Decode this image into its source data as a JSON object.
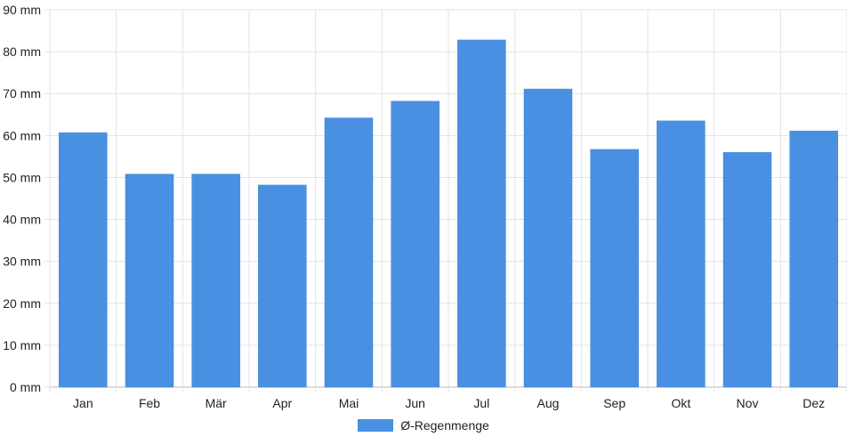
{
  "chart_data": {
    "type": "bar",
    "categories": [
      "Jan",
      "Feb",
      "Mär",
      "Apr",
      "Mai",
      "Jun",
      "Jul",
      "Aug",
      "Sep",
      "Okt",
      "Nov",
      "Dez"
    ],
    "series": [
      {
        "name": "Ø-Regenmenge",
        "values": [
          60.7,
          50.8,
          50.8,
          48.2,
          64.2,
          68.2,
          82.8,
          71.1,
          56.7,
          63.5,
          56.0,
          61.1
        ],
        "color": "#4a90e2"
      }
    ],
    "yticks": [
      "0 mm",
      "10 mm",
      "20 mm",
      "30 mm",
      "40 mm",
      "50 mm",
      "60 mm",
      "70 mm",
      "80 mm",
      "90 mm"
    ],
    "ylim": [
      0,
      90
    ],
    "grid": true,
    "legend_position": "bottom"
  }
}
